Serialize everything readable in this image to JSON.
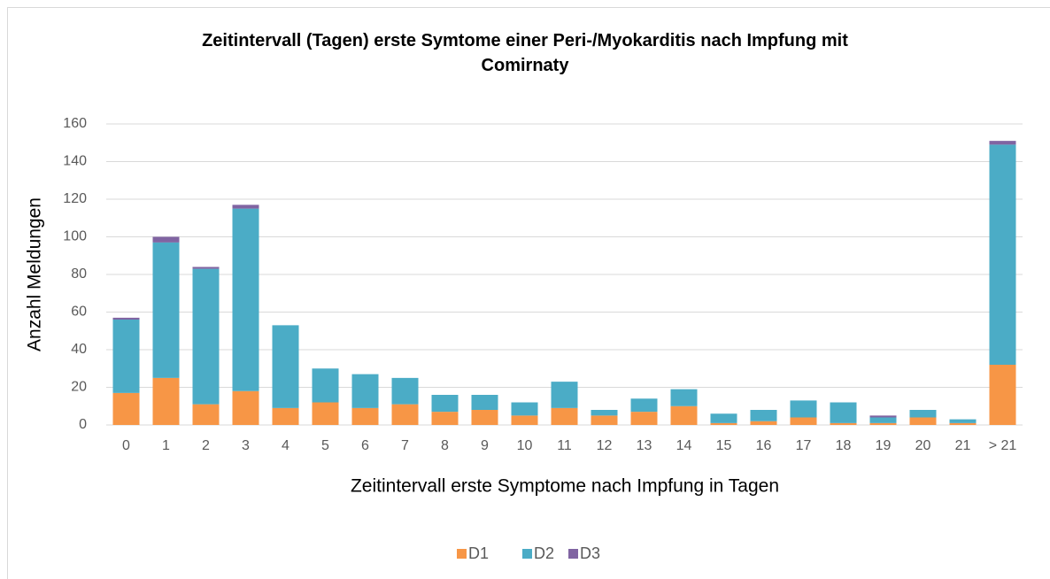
{
  "chart_data": {
    "type": "stacked_bar",
    "title": "Zeitintervall (Tagen) erste Symtome einer Peri-/Myokarditis nach Impfung mit Comirnaty",
    "xlabel": "Zeitintervall erste Symptome nach Impfung in Tagen",
    "ylabel": "Anzahl Meldungen",
    "categories": [
      "0",
      "1",
      "2",
      "3",
      "4",
      "5",
      "6",
      "7",
      "8",
      "9",
      "10",
      "11",
      "12",
      "13",
      "14",
      "15",
      "16",
      "17",
      "18",
      "19",
      "20",
      "21",
      "> 21"
    ],
    "series": [
      {
        "name": "D1",
        "color": "#f79646",
        "values": [
          17,
          25,
          11,
          18,
          9,
          12,
          9,
          11,
          7,
          8,
          5,
          9,
          5,
          7,
          10,
          1,
          2,
          4,
          1,
          1,
          4,
          1,
          32
        ]
      },
      {
        "name": "D2",
        "color": "#4bacc6",
        "values": [
          39,
          72,
          72,
          97,
          44,
          18,
          18,
          14,
          9,
          8,
          7,
          14,
          3,
          7,
          9,
          5,
          6,
          9,
          11,
          3,
          4,
          2,
          117
        ]
      },
      {
        "name": "D3",
        "color": "#8064a2",
        "values": [
          1,
          3,
          1,
          2,
          0,
          0,
          0,
          0,
          0,
          0,
          0,
          0,
          0,
          0,
          0,
          0,
          0,
          0,
          0,
          1,
          0,
          0,
          2
        ]
      }
    ],
    "ylim": [
      0,
      160
    ],
    "yticks": [
      0,
      20,
      40,
      60,
      80,
      100,
      120,
      140,
      160
    ],
    "grid": true,
    "legend": "bottom"
  }
}
